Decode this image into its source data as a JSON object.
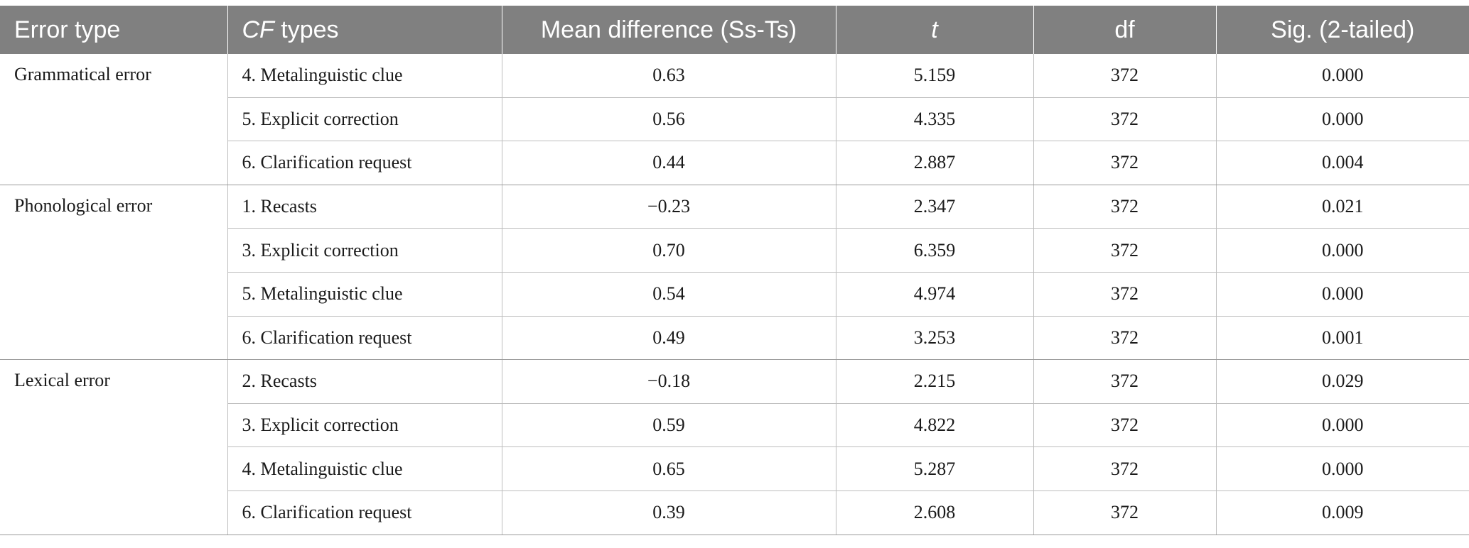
{
  "table": {
    "headers": {
      "error_type": "Error type",
      "cf_types_italic": "CF",
      "cf_types_rest": " types",
      "mean_difference": "Mean difference (Ss-Ts)",
      "t": "t",
      "df": "df",
      "sig": "Sig. (2-tailed)"
    },
    "groups": [
      {
        "error_type": "Grammatical error",
        "rows": [
          {
            "cf_type": "4. Metalinguistic clue",
            "mean_difference": "0.63",
            "t": "5.159",
            "df": "372",
            "sig": "0.000"
          },
          {
            "cf_type": "5. Explicit correction",
            "mean_difference": "0.56",
            "t": "4.335",
            "df": "372",
            "sig": "0.000"
          },
          {
            "cf_type": "6. Clarification request",
            "mean_difference": "0.44",
            "t": "2.887",
            "df": "372",
            "sig": "0.004"
          }
        ]
      },
      {
        "error_type": "Phonological error",
        "rows": [
          {
            "cf_type": "1. Recasts",
            "mean_difference": "−0.23",
            "t": "2.347",
            "df": "372",
            "sig": "0.021"
          },
          {
            "cf_type": "3. Explicit correction",
            "mean_difference": "0.70",
            "t": "6.359",
            "df": "372",
            "sig": "0.000"
          },
          {
            "cf_type": "5. Metalinguistic clue",
            "mean_difference": "0.54",
            "t": "4.974",
            "df": "372",
            "sig": "0.000"
          },
          {
            "cf_type": "6. Clarification request",
            "mean_difference": "0.49",
            "t": "3.253",
            "df": "372",
            "sig": "0.001"
          }
        ]
      },
      {
        "error_type": "Lexical error",
        "rows": [
          {
            "cf_type": "2. Recasts",
            "mean_difference": "−0.18",
            "t": "2.215",
            "df": "372",
            "sig": "0.029"
          },
          {
            "cf_type": "3. Explicit correction",
            "mean_difference": "0.59",
            "t": "4.822",
            "df": "372",
            "sig": "0.000"
          },
          {
            "cf_type": "4. Metalinguistic clue",
            "mean_difference": "0.65",
            "t": "5.287",
            "df": "372",
            "sig": "0.000"
          },
          {
            "cf_type": "6. Clarification request",
            "mean_difference": "0.39",
            "t": "2.608",
            "df": "372",
            "sig": "0.009"
          }
        ]
      }
    ]
  }
}
